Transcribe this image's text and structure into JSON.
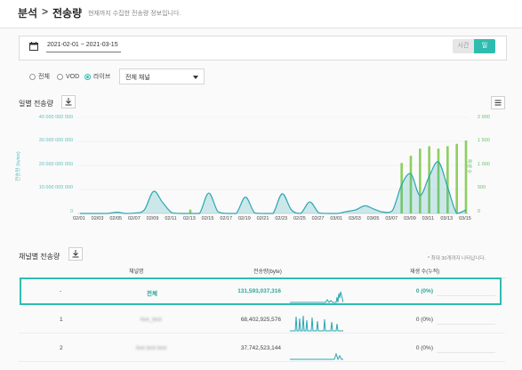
{
  "breadcrumb": {
    "section": "분석",
    "separator": ">",
    "page": "전송량"
  },
  "subtitle": "현재까지 수집한 전송량 정보입니다.",
  "date_range": "2021-02-01 ~ 2021-03-15",
  "granularity": {
    "time_label": "시간",
    "day_label": "일",
    "selected": "일"
  },
  "filters": {
    "options": [
      "전체",
      "VOD",
      "라이브"
    ],
    "selected": "라이브",
    "channel_select": "전체 채널"
  },
  "daily": {
    "title": "일별 전송량",
    "y_left_label": "전송량 (bytes)",
    "y_right_label": "재생 수",
    "y_left_ticks": [
      "40 000 000 000",
      "30 000 000 000",
      "20 000 000 000",
      "10 000 000 000",
      "0"
    ],
    "y_right_ticks": [
      "2 000",
      "1 500",
      "1 000",
      "500",
      "0"
    ],
    "x_ticks": [
      "02/01",
      "02/03",
      "02/05",
      "02/07",
      "02/09",
      "02/11",
      "02/13",
      "02/15",
      "02/17",
      "02/19",
      "02/21",
      "02/23",
      "02/25",
      "02/27",
      "03/01",
      "03/03",
      "03/05",
      "03/07",
      "03/09",
      "03/11",
      "03/13",
      "03/15"
    ]
  },
  "chart_data": {
    "type": "line",
    "title": "일별 전송량",
    "ylabel": "전송량 (bytes)",
    "y2label": "재생 수",
    "ylim": [
      0,
      40000000000
    ],
    "y2lim": [
      0,
      2000
    ],
    "x": [
      "02/01",
      "02/02",
      "02/03",
      "02/04",
      "02/05",
      "02/06",
      "02/07",
      "02/08",
      "02/09",
      "02/10",
      "02/11",
      "02/12",
      "02/13",
      "02/14",
      "02/15",
      "02/16",
      "02/17",
      "02/18",
      "02/19",
      "02/20",
      "02/21",
      "02/22",
      "02/23",
      "02/24",
      "02/25",
      "02/26",
      "02/27",
      "02/28",
      "03/01",
      "03/02",
      "03/03",
      "03/04",
      "03/05",
      "03/06",
      "03/07",
      "03/08",
      "03/09",
      "03/10",
      "03/11",
      "03/12",
      "03/13",
      "03/14",
      "03/15"
    ],
    "series": [
      {
        "type": "area",
        "values": [
          0,
          0,
          0,
          0,
          500000000,
          0,
          200000000,
          1500000000,
          9200000000,
          4500000000,
          300000000,
          0,
          0,
          0,
          8500000000,
          800000000,
          0,
          0,
          6800000000,
          200000000,
          0,
          0,
          8200000000,
          1500000000,
          0,
          4800000000,
          200000000,
          0,
          0,
          800000000,
          1500000000,
          3200000000,
          1800000000,
          600000000,
          1200000000,
          12000000000,
          16500000000,
          7500000000,
          15500000000,
          21500000000,
          11000000000,
          0,
          1500000000
        ]
      },
      {
        "type": "bar",
        "values": [
          0,
          0,
          0,
          0,
          0,
          0,
          0,
          0,
          0,
          0,
          0,
          0,
          80,
          0,
          0,
          0,
          0,
          0,
          0,
          0,
          0,
          0,
          0,
          0,
          0,
          0,
          0,
          0,
          0,
          0,
          0,
          0,
          0,
          0,
          0,
          1050,
          1200,
          1350,
          1400,
          1350,
          1400,
          1450,
          1520
        ]
      }
    ]
  },
  "channels": {
    "title": "채널별 전송량",
    "note": "* 최대 30개까지 나타납니다.",
    "headers": {
      "name": "채널명",
      "bytes": "전송량(byte)",
      "plays": "재생 수(누적)"
    },
    "rows": [
      {
        "rank": "-",
        "name": "전체",
        "bytes": "131,593,037,316",
        "plays": "0 (0%)"
      },
      {
        "rank": "1",
        "name": "live_test",
        "bytes": "68,402,925,576",
        "plays": "0 (0%)"
      },
      {
        "rank": "2",
        "name": "live test test",
        "bytes": "37,742,523,144",
        "plays": "0 (0%)"
      }
    ]
  },
  "colors": {
    "accent": "#2fbcb0",
    "bar": "#8ccf5f",
    "area": "#2aa6b3"
  }
}
